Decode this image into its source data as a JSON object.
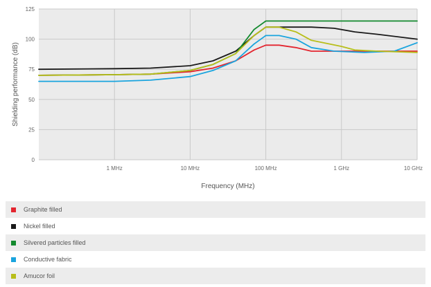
{
  "chart_data": {
    "type": "line",
    "xlabel": "Frequency (MHz)",
    "ylabel": "Shielding performance (dB)",
    "xscale": "log",
    "xlim": [
      0.1,
      10000
    ],
    "ylim": [
      0,
      125
    ],
    "x_ticks": [
      {
        "value": 1,
        "label": "1 MHz"
      },
      {
        "value": 10,
        "label": "10 MHz"
      },
      {
        "value": 100,
        "label": "100 MHz"
      },
      {
        "value": 1000,
        "label": "1 GHz"
      },
      {
        "value": 10000,
        "label": "10 GHz"
      }
    ],
    "y_ticks": [
      0,
      25,
      50,
      75,
      100,
      125
    ],
    "grid": true,
    "legend_position": "bottom",
    "series": [
      {
        "name": "Graphite filled",
        "color": "#e3252f",
        "points": [
          [
            0.1,
            70
          ],
          [
            1,
            70.5
          ],
          [
            3,
            71
          ],
          [
            10,
            73
          ],
          [
            20,
            76
          ],
          [
            40,
            82
          ],
          [
            70,
            91
          ],
          [
            100,
            95
          ],
          [
            150,
            95
          ],
          [
            250,
            93
          ],
          [
            400,
            90
          ],
          [
            1000,
            90
          ],
          [
            3000,
            90
          ],
          [
            10000,
            90
          ]
        ]
      },
      {
        "name": "Nickel filled",
        "color": "#1a1a1a",
        "points": [
          [
            0.1,
            75
          ],
          [
            1,
            75.5
          ],
          [
            3,
            76
          ],
          [
            10,
            78
          ],
          [
            20,
            82
          ],
          [
            40,
            90
          ],
          [
            70,
            103
          ],
          [
            100,
            110
          ],
          [
            150,
            110
          ],
          [
            400,
            110
          ],
          [
            800,
            109
          ],
          [
            1500,
            106
          ],
          [
            3000,
            104
          ],
          [
            10000,
            100
          ]
        ]
      },
      {
        "name": "Silvered particles filled",
        "color": "#138a2e",
        "points": [
          [
            0.1,
            70
          ],
          [
            1,
            70.5
          ],
          [
            3,
            71
          ],
          [
            10,
            74
          ],
          [
            20,
            79
          ],
          [
            40,
            88
          ],
          [
            70,
            108
          ],
          [
            100,
            115
          ],
          [
            300,
            115
          ],
          [
            1000,
            115
          ],
          [
            3000,
            115
          ],
          [
            10000,
            115
          ]
        ]
      },
      {
        "name": "Conductive fabric",
        "color": "#1aa4de",
        "points": [
          [
            0.1,
            65
          ],
          [
            1,
            65
          ],
          [
            3,
            66
          ],
          [
            10,
            69
          ],
          [
            20,
            74
          ],
          [
            40,
            82
          ],
          [
            70,
            96
          ],
          [
            100,
            103
          ],
          [
            150,
            103
          ],
          [
            250,
            100
          ],
          [
            400,
            93
          ],
          [
            800,
            90
          ],
          [
            2000,
            89
          ],
          [
            5000,
            90
          ],
          [
            10000,
            97
          ]
        ]
      },
      {
        "name": "Amucor foil",
        "color": "#b8be1a",
        "points": [
          [
            0.1,
            70
          ],
          [
            1,
            70.5
          ],
          [
            3,
            71
          ],
          [
            10,
            74
          ],
          [
            20,
            79
          ],
          [
            40,
            88
          ],
          [
            70,
            103
          ],
          [
            100,
            110
          ],
          [
            150,
            110
          ],
          [
            250,
            106
          ],
          [
            400,
            99
          ],
          [
            1000,
            94
          ],
          [
            1500,
            91
          ],
          [
            3000,
            90
          ],
          [
            10000,
            89
          ]
        ]
      }
    ]
  }
}
